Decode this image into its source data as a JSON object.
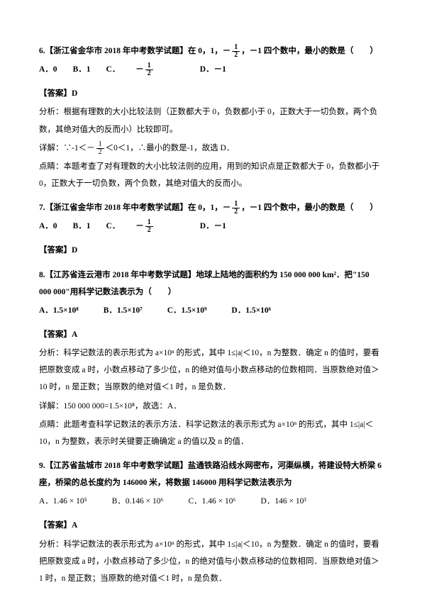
{
  "q6": {
    "stem_pre": "6.【浙江省金华市 2018 年中考数学试题】在 0，1，",
    "stem_post": "，－1 四个数中，最小的数是（　　）",
    "frac_num": "1",
    "frac_den": "2",
    "opt_a": "A．0",
    "opt_b": "B．1",
    "opt_c_pre": "C．",
    "opt_d": "D．－1",
    "answer_label": "【答案】D",
    "analysis": "分析：根据有理数的大小比较法则（正数都大于 0，负数都小于 0，正数大于一切负数，两个负数，其绝对值大的反而小）比较即可。",
    "detail_pre": "详解：∵-1＜",
    "detail_post": "＜0＜1，∴最小的数是-1，故选 D．",
    "point": "点睛：本题考查了对有理数的大小比较法则的应用，用到的知识点是正数都大于 0，负数都小于 0，正数大于一切负数，两个负数，其绝对值大的反而小。"
  },
  "q7": {
    "stem_pre": "7.【浙江省金华市 2018 年中考数学试题】在 0，1，",
    "stem_post": "，－1 四个数中，最小的数是（　　）",
    "opt_a": "A．0",
    "opt_b": "B．1",
    "opt_c_pre": "C．",
    "opt_d": "D．－1",
    "answer_label": "【答案】D"
  },
  "q8": {
    "stem": "8.【江苏省连云港市 2018 年中考数学试题】地球上陆地的面积约为 150 000 000 km²．把\"150 000 000\"用科学记数法表示为（　　）",
    "opt_a": "A．1.5×10⁸",
    "opt_b": "B．1.5×10⁷",
    "opt_c": "C．1.5×10⁹",
    "opt_d": "D．1.5×10⁶",
    "answer_label": "【答案】A",
    "analysis": "分析：科学记数法的表示形式为 a×10ⁿ 的形式，其中 1≤|a|＜10，n 为整数．确定 n 的值时，要看把原数变成 a 时，小数点移动了多少位，n 的绝对值与小数点移动的位数相同．当原数绝对值＞10 时，n 是正数；当原数的绝对值＜1 时，n 是负数．",
    "detail": "详解：150 000 000=1.5×10⁸，故选：A．",
    "point": "点睛：此题考查科学记数法的表示方法．科学记数法的表示形式为 a×10ⁿ 的形式，其中 1≤|a|＜10，n 为整数，表示时关键要正确确定 a 的值以及 n 的值．"
  },
  "q9": {
    "stem": "9.【江苏省盐城市 2018 年中考数学试题】盐通铁路沿线水网密布，河渠纵横，将建设特大桥梁 6 座，桥梁的总长度约为 146000 米，将数据 146000 用科学记数法表示为",
    "opt_a": "A．1.46 × 10⁵",
    "opt_b": "B．0.146 × 10⁶",
    "opt_c": "C．1.46 × 10⁶",
    "opt_d": "D．146 × 10³",
    "answer_label": "【答案】A",
    "analysis": "分析：科学记数法的表示形式为 a×10ⁿ 的形式，其中 1≤|a|＜10，n 为整数．确定 n 的值时，要看把原数变成 a 时，小数点移动了多少位，n 的绝对值与小数点移动的位数相同．当原数绝对值＞1 时，n 是正数；当原数的绝对值＜1 时，n 是负数．"
  }
}
